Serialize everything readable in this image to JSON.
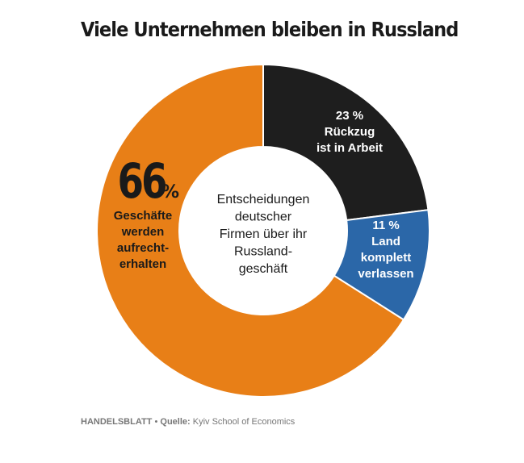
{
  "title": "Viele Unternehmen bleiben in Russland",
  "chart_data": {
    "type": "pie",
    "style": "donut",
    "center_label": [
      "Entscheidungen",
      "deutscher",
      "Firmen über ihr",
      "Russland-",
      "geschäft"
    ],
    "slices": [
      {
        "value": 23,
        "percent_label": "23 %",
        "label_lines": [
          "Rückzug",
          "ist in Arbeit"
        ],
        "color": "#1e1e1e"
      },
      {
        "value": 11,
        "percent_label": "11 %",
        "label_lines": [
          "Land",
          "komplett",
          "verlassen"
        ],
        "color": "#2b67a8"
      },
      {
        "value": 66,
        "percent_number": "66",
        "percent_sign": "%",
        "label_lines": [
          "Geschäfte",
          "werden",
          "aufrecht-",
          "erhalten"
        ],
        "color": "#e87f17"
      }
    ],
    "start_angle": "12 o'clock",
    "direction": "clockwise",
    "legend": "none"
  },
  "source": {
    "publisher": "HANDELSBLATT",
    "separator": "•",
    "label": "Quelle:",
    "text": "Kyiv School of Economics"
  }
}
